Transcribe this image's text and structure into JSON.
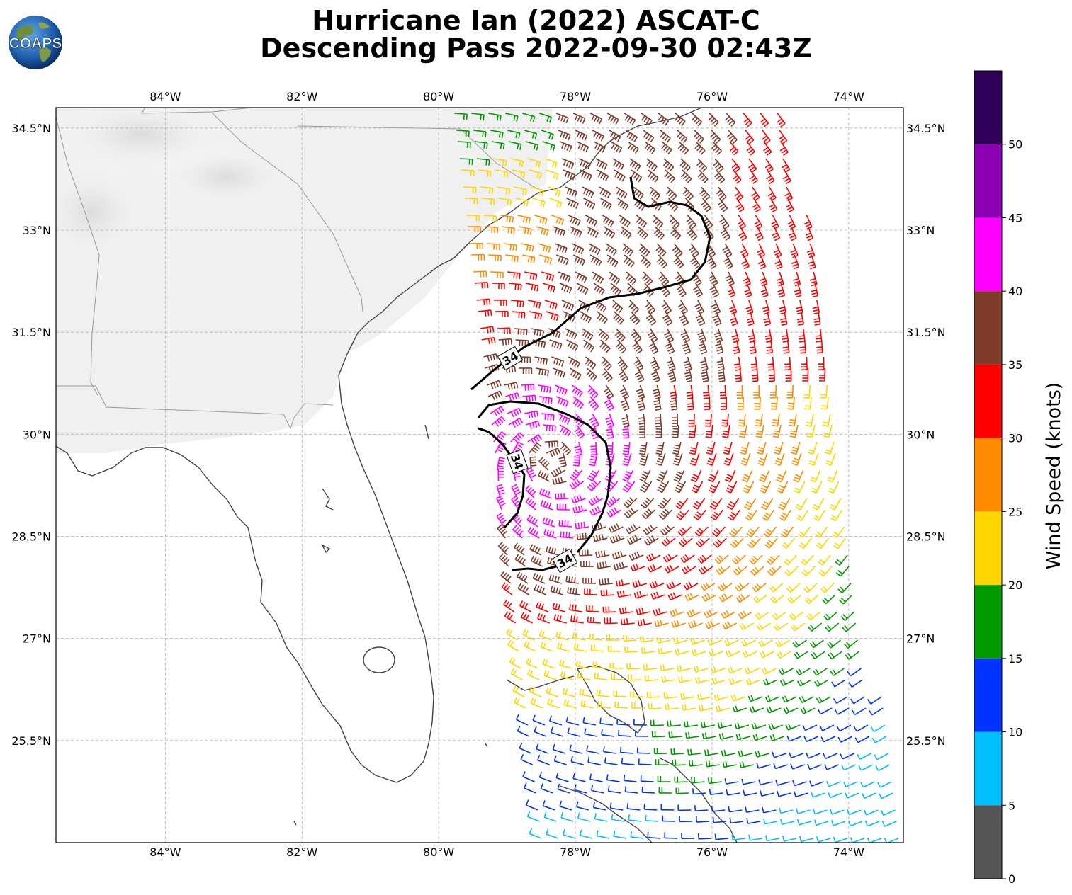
{
  "title": {
    "line1": "Hurricane Ian (2022) ASCAT-C",
    "line2": "Descending Pass 2022-09-30 02:43Z"
  },
  "logo": {
    "text": "COAPS",
    "icon": "globe-logo-icon"
  },
  "map": {
    "lon_range": [
      -85.6,
      -73.2
    ],
    "lat_range": [
      24.0,
      34.8
    ],
    "lon_ticks": [
      "84°W",
      "82°W",
      "80°W",
      "78°W",
      "76°W",
      "74°W"
    ],
    "lon_tick_values": [
      -84,
      -82,
      -80,
      -78,
      -76,
      -74
    ],
    "lat_ticks": [
      "34.5°N",
      "33°N",
      "31.5°N",
      "30°N",
      "28.5°N",
      "27°N",
      "25.5°N"
    ],
    "lat_tick_values": [
      34.5,
      33,
      31.5,
      30,
      28.5,
      27,
      25.5
    ],
    "gridlines": true,
    "contour_label": "34",
    "contour_level_knots": 34
  },
  "colorbar": {
    "label": "Wind Speed (knots)",
    "ticks": [
      "0",
      "5",
      "10",
      "15",
      "20",
      "25",
      "30",
      "35",
      "40",
      "45",
      "50"
    ],
    "bins": [
      {
        "min": 0,
        "max": 5,
        "color": "#555555"
      },
      {
        "min": 5,
        "max": 10,
        "color": "#00bfff"
      },
      {
        "min": 10,
        "max": 15,
        "color": "#0033ff"
      },
      {
        "min": 15,
        "max": 20,
        "color": "#009900"
      },
      {
        "min": 20,
        "max": 25,
        "color": "#ffd700"
      },
      {
        "min": 25,
        "max": 30,
        "color": "#ff8c00"
      },
      {
        "min": 30,
        "max": 35,
        "color": "#ff0000"
      },
      {
        "min": 35,
        "max": 40,
        "color": "#7f3b2a"
      },
      {
        "min": 40,
        "max": 45,
        "color": "#ff00ff"
      },
      {
        "min": 45,
        "max": 50,
        "color": "#8b00b3"
      },
      {
        "min": 50,
        "max": 55,
        "color": "#2e0057"
      }
    ]
  },
  "colors": {
    "coastline": "#444444",
    "border": "#999999",
    "gridline": "#b0b0b0",
    "contour": "#000000",
    "land_shade": "#eeeeee"
  }
}
